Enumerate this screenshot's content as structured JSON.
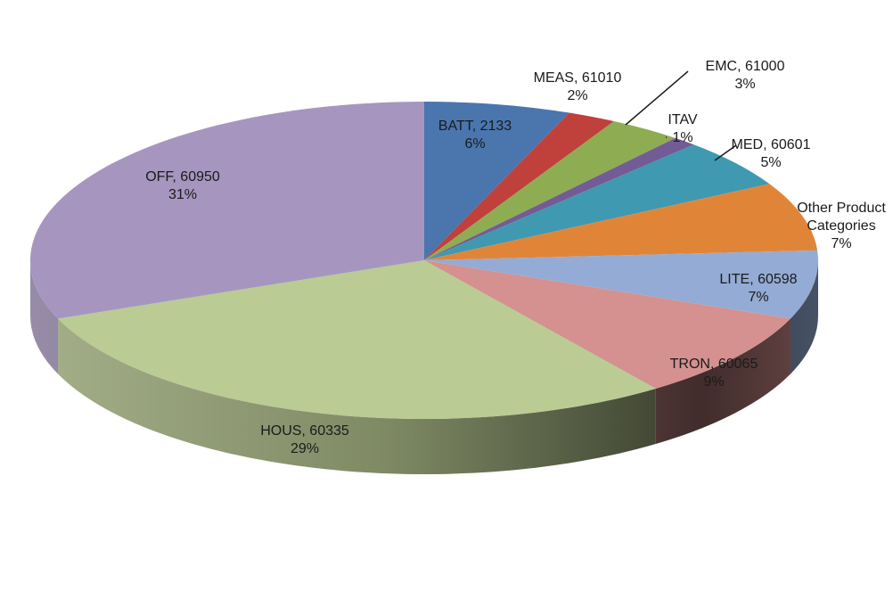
{
  "chart_data": {
    "type": "pie",
    "style": "3d",
    "start": "12 o'clock",
    "direction": "clockwise",
    "slices": [
      {
        "name": "BATT, 2133",
        "percent_label": "6%",
        "value": 6,
        "color": "#4a76ad",
        "leader_line": false
      },
      {
        "name": "MEAS, 61010",
        "percent_label": "2%",
        "value": 2,
        "color": "#c0403c",
        "leader_line": false
      },
      {
        "name": "EMC, 61000",
        "percent_label": "3%",
        "value": 3,
        "color": "#8ead52",
        "leader_line": true
      },
      {
        "name": "ITAV",
        "percent_label": "1%",
        "value": 1,
        "color": "#735c95",
        "leader_line": true
      },
      {
        "name": "MED, 60601",
        "percent_label": "5%",
        "value": 5,
        "color": "#3f99b0",
        "leader_line": true
      },
      {
        "name": "Other Product Categories",
        "percent_label": "7%",
        "value": 7,
        "color": "#e08538",
        "leader_line": false
      },
      {
        "name": "LITE, 60598",
        "percent_label": "7%",
        "value": 7,
        "color": "#94abd5",
        "leader_line": false
      },
      {
        "name": "TRON, 60065",
        "percent_label": "9%",
        "value": 9,
        "color": "#d4918f",
        "leader_line": false
      },
      {
        "name": "HOUS, 60335",
        "percent_label": "29%",
        "value": 29,
        "color": "#bacb93",
        "leader_line": false
      },
      {
        "name": "OFF, 60950",
        "percent_label": "31%",
        "value": 31,
        "color": "#a696bf",
        "leader_line": false
      }
    ]
  }
}
